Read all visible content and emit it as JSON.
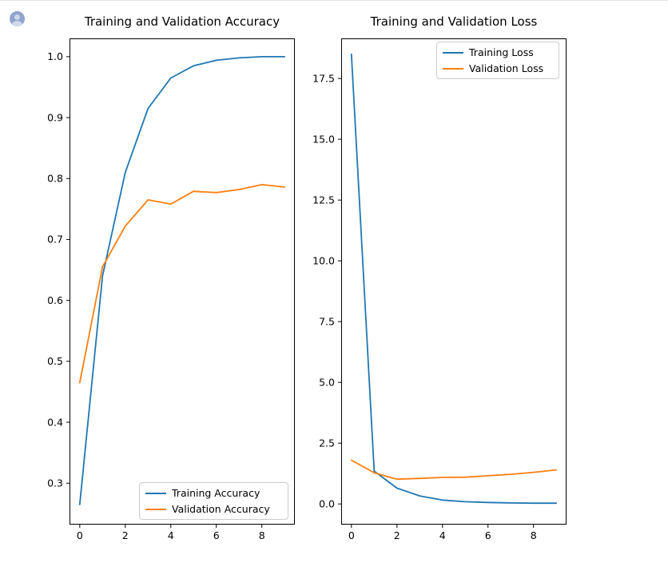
{
  "page": {
    "background_color": "#ffffff",
    "top_border_color": "#e4e4e4"
  },
  "avatar": {
    "circle_color": "#8fa3cc",
    "silhouette_color": "#cfd9ec"
  },
  "chart_data": [
    {
      "type": "line",
      "title": "Training and Validation Accuracy",
      "x": [
        0,
        1,
        2,
        3,
        4,
        5,
        6,
        7,
        8,
        9
      ],
      "series": [
        {
          "name": "Training Accuracy",
          "color": "#1f77b4",
          "values": [
            0.265,
            0.64,
            0.81,
            0.915,
            0.965,
            0.985,
            0.994,
            0.998,
            1.0,
            1.0
          ]
        },
        {
          "name": "Validation Accuracy",
          "color": "#ff7f0e",
          "values": [
            0.465,
            0.655,
            0.722,
            0.765,
            0.758,
            0.779,
            0.777,
            0.782,
            0.79,
            0.786
          ]
        }
      ],
      "xticks": [
        0,
        2,
        4,
        6,
        8
      ],
      "xtick_labels": [
        "0",
        "2",
        "4",
        "6",
        "8"
      ],
      "yticks": [
        0.3,
        0.4,
        0.5,
        0.6,
        0.7,
        0.8,
        0.9,
        1.0
      ],
      "ytick_labels": [
        "0.3",
        "0.4",
        "0.5",
        "0.6",
        "0.7",
        "0.8",
        "0.9",
        "1.0"
      ],
      "xlim": [
        -0.45,
        9.45
      ],
      "ylim": [
        0.232,
        1.03
      ],
      "grid": false,
      "legend_position": "lower right"
    },
    {
      "type": "line",
      "title": "Training and Validation Loss",
      "x": [
        0,
        1,
        2,
        3,
        4,
        5,
        6,
        7,
        8,
        9
      ],
      "series": [
        {
          "name": "Training Loss",
          "color": "#1f77b4",
          "values": [
            18.5,
            1.35,
            0.65,
            0.33,
            0.16,
            0.09,
            0.06,
            0.04,
            0.03,
            0.03
          ]
        },
        {
          "name": "Validation Loss",
          "color": "#ff7f0e",
          "values": [
            1.8,
            1.28,
            1.02,
            1.05,
            1.09,
            1.1,
            1.16,
            1.22,
            1.3,
            1.4
          ]
        }
      ],
      "xticks": [
        0,
        2,
        4,
        6,
        8
      ],
      "xtick_labels": [
        "0",
        "2",
        "4",
        "6",
        "8"
      ],
      "yticks": [
        0.0,
        2.5,
        5.0,
        7.5,
        10.0,
        12.5,
        15.0,
        17.5
      ],
      "ytick_labels": [
        "0.0",
        "2.5",
        "5.0",
        "7.5",
        "10.0",
        "12.5",
        "15.0",
        "17.5"
      ],
      "xlim": [
        -0.45,
        9.45
      ],
      "ylim": [
        -0.85,
        19.15
      ],
      "grid": false,
      "legend_position": "upper right"
    }
  ]
}
